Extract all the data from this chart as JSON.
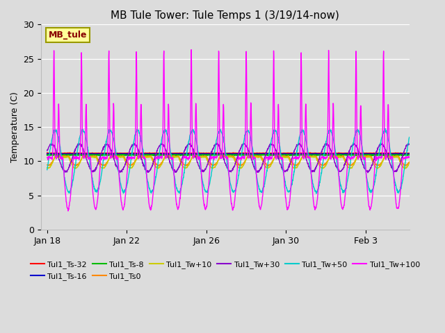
{
  "title": "MB Tule Tower: Tule Temps 1 (3/19/14-now)",
  "ylabel": "Temperature (C)",
  "background_color": "#dcdcdc",
  "ylim": [
    0,
    30
  ],
  "yticks": [
    0,
    5,
    10,
    15,
    20,
    25,
    30
  ],
  "x_tick_labels": [
    "Jan 18",
    "Jan 22",
    "Jan 26",
    "Jan 30",
    "Feb 3"
  ],
  "x_tick_positions": [
    0,
    4,
    8,
    12,
    16
  ],
  "xlim": [
    -0.3,
    18.2
  ],
  "n_days": 18.2,
  "series": [
    {
      "label": "Tul1_Ts-32",
      "color": "#ff0000"
    },
    {
      "label": "Tul1_Ts-16",
      "color": "#0000cc"
    },
    {
      "label": "Tul1_Ts-8",
      "color": "#00bb00"
    },
    {
      "label": "Tul1_Ts0",
      "color": "#ff8800"
    },
    {
      "label": "Tul1_Tw+10",
      "color": "#cccc00"
    },
    {
      "label": "Tul1_Tw+30",
      "color": "#8800cc"
    },
    {
      "label": "Tul1_Tw+50",
      "color": "#00cccc"
    },
    {
      "label": "Tul1_Tw+100",
      "color": "#ff00ff"
    }
  ],
  "legend_box_label": "MB_tule",
  "legend_box_facecolor": "#ffff99",
  "legend_box_edgecolor": "#999900",
  "title_fontsize": 11,
  "label_fontsize": 9,
  "tick_fontsize": 9,
  "legend_fontsize": 8
}
